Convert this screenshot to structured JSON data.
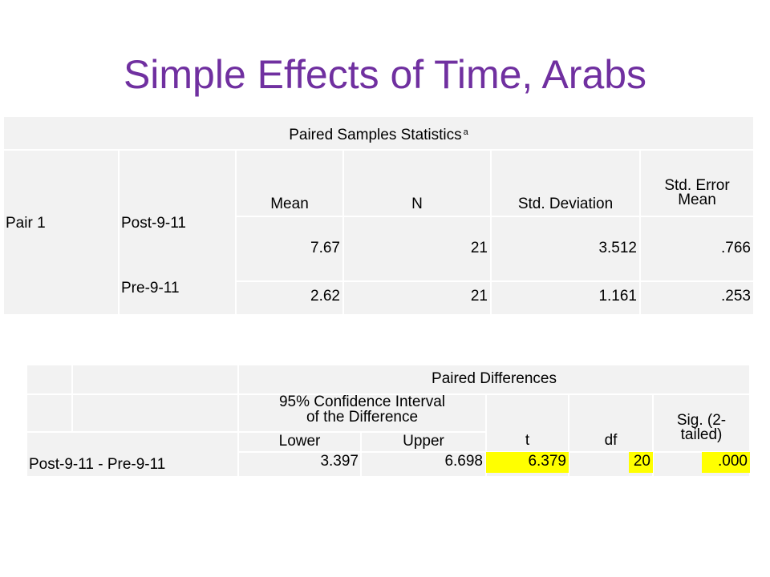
{
  "title": "Simple Effects of Time, Arabs",
  "stats_table": {
    "caption": "Paired Samples Statistics",
    "caption_superscript": "a",
    "headers": {
      "mean": "Mean",
      "n": "N",
      "std_dev": "Std. Deviation",
      "std_err_1": "Std. Error",
      "std_err_2": "Mean"
    },
    "pair_label": "Pair 1",
    "rows": [
      {
        "label": "Post-9-11",
        "mean": "7.67",
        "n": "21",
        "std_dev": "3.512",
        "std_err": ".766"
      },
      {
        "label": "Pre-9-11",
        "mean": "2.62",
        "n": "21",
        "std_dev": "1.161",
        "std_err": ".253"
      }
    ]
  },
  "diff_table": {
    "caption": "Paired Differences",
    "ci_header_1": "95% Confidence Interval",
    "ci_header_2": "of the Difference",
    "lower": "Lower",
    "upper": "Upper",
    "t": "t",
    "df": "df",
    "sig_1": "Sig. (2-",
    "sig_2": "tailed)",
    "row": {
      "label": "Post-9-11 - Pre-9-11",
      "lower": "3.397",
      "upper": "6.698",
      "t": "6.379",
      "df": "20",
      "sig": ".000"
    }
  },
  "colors": {
    "title": "#7030a0",
    "table_bg": "#f2f2f2",
    "highlight": "#ffff00"
  }
}
